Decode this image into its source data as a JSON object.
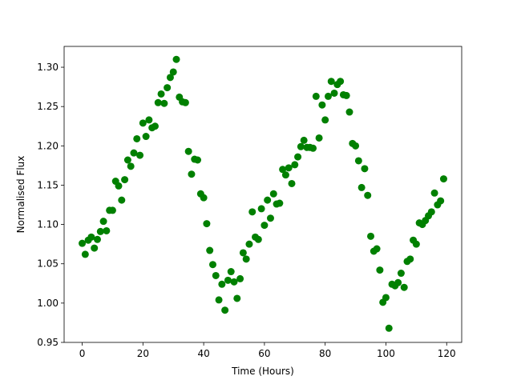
{
  "chart_data": {
    "type": "scatter",
    "xlabel": "Time (Hours)",
    "ylabel": "Normalised Flux",
    "color": "#008000",
    "x": [
      0,
      1,
      2,
      3,
      4,
      5,
      6,
      7,
      8,
      9,
      10,
      11,
      12,
      13,
      14,
      15,
      16,
      17,
      18,
      19,
      20,
      21,
      22,
      23,
      24,
      25,
      26,
      27,
      28,
      29,
      30,
      31,
      32,
      33,
      34,
      35,
      36,
      37,
      38,
      39,
      40,
      41,
      42,
      43,
      44,
      45,
      46,
      47,
      48,
      49,
      50,
      51,
      52,
      53,
      54,
      55,
      56,
      57,
      58,
      59,
      60,
      61,
      62,
      63,
      64,
      65,
      66,
      67,
      68,
      69,
      70,
      71,
      72,
      73,
      74,
      75,
      76,
      77,
      78,
      79,
      80,
      81,
      82,
      83,
      84,
      85,
      86,
      87,
      88,
      89,
      90,
      91,
      92,
      93,
      94,
      95,
      96,
      97,
      98,
      99,
      100,
      101,
      102,
      103,
      104,
      105,
      106,
      107,
      108,
      109,
      110,
      111,
      112,
      113,
      114,
      115,
      116,
      117,
      118,
      119
    ],
    "values": [
      1.076,
      1.062,
      1.08,
      1.084,
      1.07,
      1.081,
      1.091,
      1.104,
      1.092,
      1.118,
      1.118,
      1.155,
      1.149,
      1.131,
      1.157,
      1.182,
      1.174,
      1.191,
      1.209,
      1.188,
      1.229,
      1.212,
      1.233,
      1.223,
      1.225,
      1.255,
      1.266,
      1.254,
      1.274,
      1.287,
      1.294,
      1.31,
      1.262,
      1.256,
      1.255,
      1.193,
      1.164,
      1.183,
      1.182,
      1.139,
      1.134,
      1.101,
      1.067,
      1.049,
      1.035,
      1.004,
      1.024,
      0.991,
      1.029,
      1.04,
      1.027,
      1.006,
      1.031,
      1.064,
      1.056,
      1.075,
      1.116,
      1.084,
      1.081,
      1.12,
      1.099,
      1.131,
      1.108,
      1.139,
      1.126,
      1.127,
      1.17,
      1.163,
      1.172,
      1.152,
      1.176,
      1.186,
      1.199,
      1.207,
      1.198,
      1.198,
      1.197,
      1.263,
      1.21,
      1.252,
      1.233,
      1.263,
      1.282,
      1.267,
      1.278,
      1.282,
      1.265,
      1.264,
      1.243,
      1.203,
      1.2,
      1.181,
      1.147,
      1.171,
      1.137,
      1.085,
      1.066,
      1.069,
      1.042,
      1.001,
      1.007,
      0.968,
      1.024,
      1.022,
      1.026,
      1.038,
      1.02,
      1.053,
      1.056,
      1.08,
      1.075,
      1.102,
      1.1,
      1.105,
      1.111,
      1.116,
      1.14,
      1.125,
      1.13,
      1.158
    ],
    "xlim": [
      -5.95,
      124.95
    ],
    "ylim": [
      0.95,
      1.3265
    ],
    "xticks": [
      0,
      20,
      40,
      60,
      80,
      100,
      120
    ],
    "yticks": [
      0.95,
      {
        "value": 1.0,
        "label": "1.00"
      },
      1.05,
      {
        "value": 1.1,
        "label": "1.10"
      },
      1.15,
      {
        "value": 1.2,
        "label": "1.20"
      },
      1.25,
      {
        "value": 1.3,
        "label": "1.30"
      }
    ]
  }
}
